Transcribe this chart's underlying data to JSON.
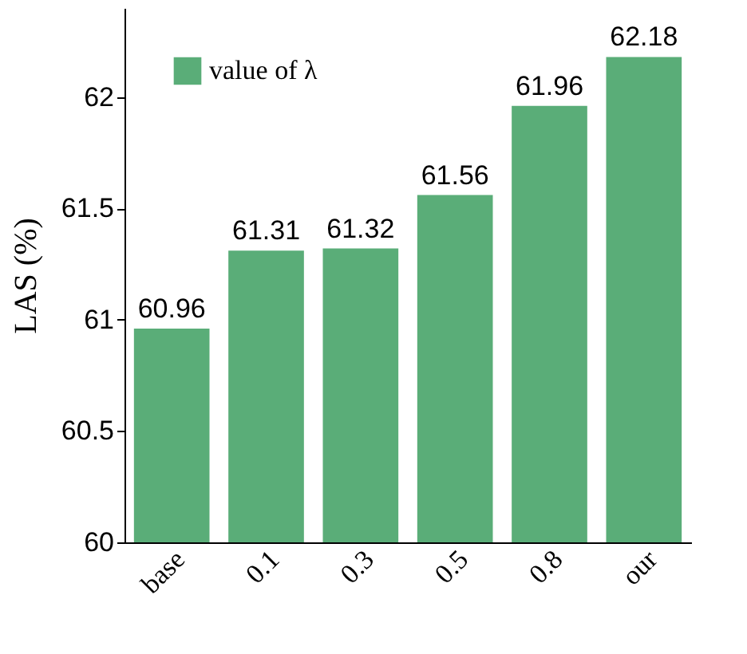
{
  "chart_data": {
    "type": "bar",
    "ylabel": "LAS (%)",
    "categories": [
      "base",
      "0.1",
      "0.3",
      "0.5",
      "0.8",
      "our"
    ],
    "series": [
      {
        "name": "value of λ",
        "color": "#5aad78",
        "values": [
          60.96,
          61.31,
          61.32,
          61.56,
          61.96,
          62.18
        ]
      }
    ],
    "ylim": [
      60,
      62.4
    ],
    "yticks": [
      60,
      60.5,
      61,
      61.5,
      62
    ],
    "data_labels": true,
    "legend": "top left",
    "grid": false
  }
}
